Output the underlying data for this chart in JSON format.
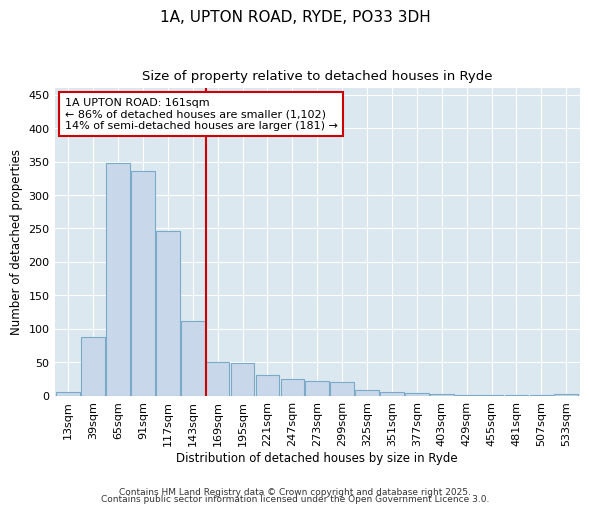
{
  "title": "1A, UPTON ROAD, RYDE, PO33 3DH",
  "subtitle": "Size of property relative to detached houses in Ryde",
  "xlabel": "Distribution of detached houses by size in Ryde",
  "ylabel": "Number of detached properties",
  "bar_labels": [
    "13sqm",
    "39sqm",
    "65sqm",
    "91sqm",
    "117sqm",
    "143sqm",
    "169sqm",
    "195sqm",
    "221sqm",
    "247sqm",
    "273sqm",
    "299sqm",
    "325sqm",
    "351sqm",
    "377sqm",
    "403sqm",
    "429sqm",
    "455sqm",
    "481sqm",
    "507sqm",
    "533sqm"
  ],
  "bar_values": [
    6,
    88,
    348,
    336,
    246,
    112,
    50,
    49,
    32,
    26,
    22,
    21,
    9,
    6,
    4,
    3,
    2,
    1,
    1,
    1,
    3
  ],
  "bar_color": "#c8d8ea",
  "bar_edgecolor": "#7aaac8",
  "plot_bg_color": "#dce8f0",
  "fig_bg_color": "#ffffff",
  "vline_index": 6,
  "vline_color": "#cc0000",
  "annotation_line1": "1A UPTON ROAD: 161sqm",
  "annotation_line2": "← 86% of detached houses are smaller (1,102)",
  "annotation_line3": "14% of semi-detached houses are larger (181) →",
  "annotation_box_edgecolor": "#cc0000",
  "ylim": [
    0,
    460
  ],
  "yticks": [
    0,
    50,
    100,
    150,
    200,
    250,
    300,
    350,
    400,
    450
  ],
  "footer1": "Contains HM Land Registry data © Crown copyright and database right 2025.",
  "footer2": "Contains public sector information licensed under the Open Government Licence 3.0."
}
